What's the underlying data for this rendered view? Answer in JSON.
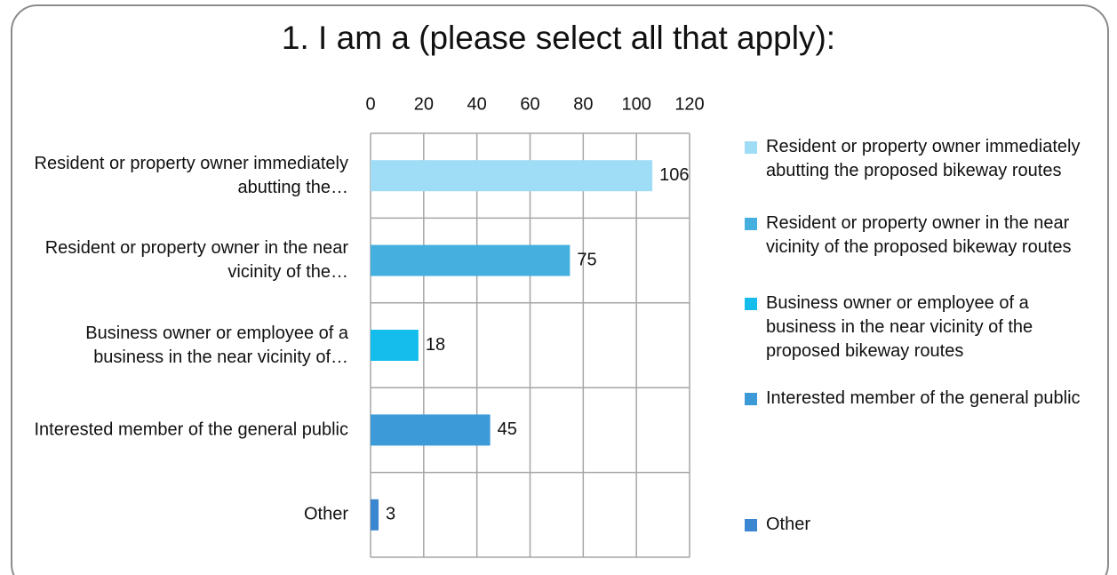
{
  "chart_data": {
    "type": "bar",
    "orientation": "horizontal",
    "title": "1. I am a (please select all that apply):",
    "categories": [
      "Resident or property owner immediately abutting the…",
      "Resident or property owner in the near vicinity of the…",
      "Business owner or employee of a business in the near vicinity of…",
      "Interested member of the general public",
      "Other"
    ],
    "legend": [
      "Resident or property owner immediately abutting the proposed bikeway routes",
      "Resident or property owner in the near vicinity of the proposed bikeway routes",
      "Business owner or employee of a business in the near vicinity of the proposed bikeway routes",
      "Interested member of the general public",
      "Other"
    ],
    "values": [
      106,
      75,
      18,
      45,
      3
    ],
    "colors": [
      "#9fdcf5",
      "#45b0e0",
      "#14bdec",
      "#3d9ad8",
      "#3a86d0"
    ],
    "xlim": [
      0,
      120
    ],
    "xticks": [
      0,
      20,
      40,
      60,
      80,
      100,
      120
    ],
    "grid": true,
    "legend_position": "right"
  }
}
